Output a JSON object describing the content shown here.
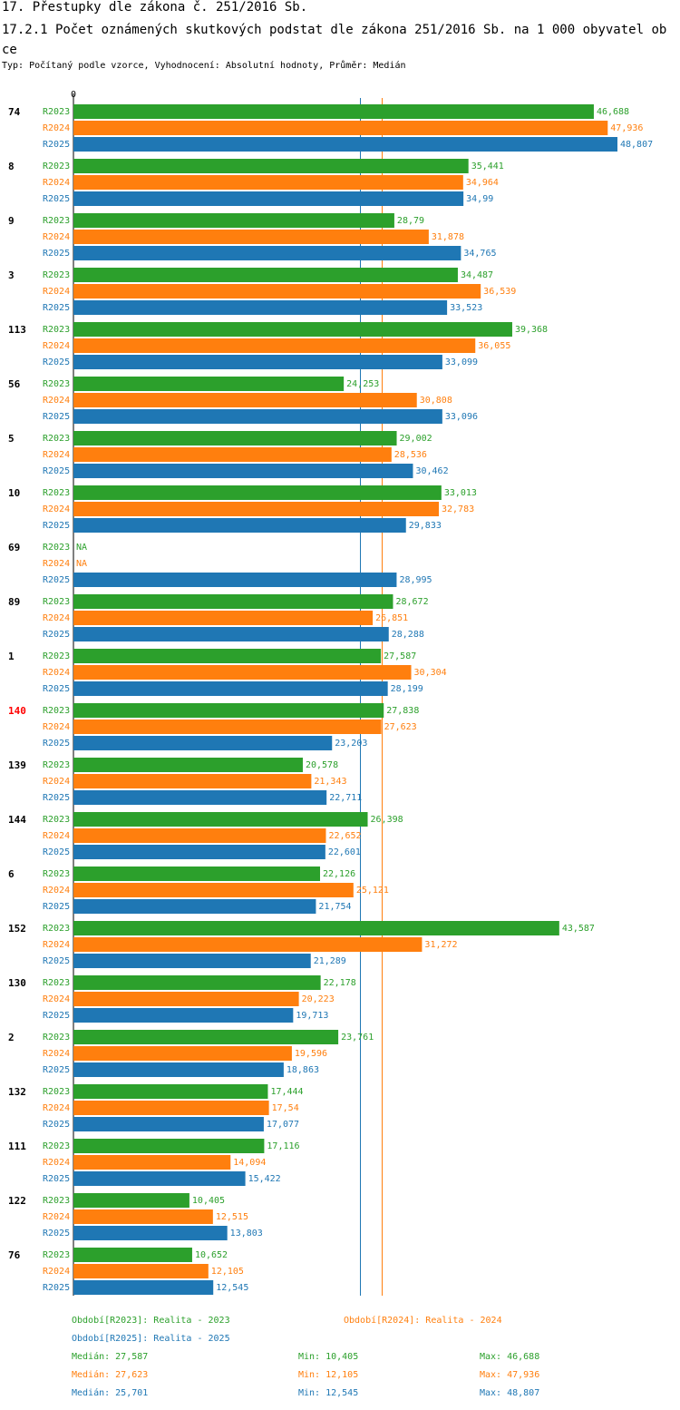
{
  "title": "17. Přestupky dle zákona č. 251/2016 Sb.",
  "subtitle": "17.2.1 Počet oznámených skutkových podstat dle zákona 251/2016 Sb. na 1 000 obyvatel obce",
  "type_line": "Typ: Počítaný podle vzorce, Vyhodnocení: Absolutní hodnoty, Průměr: Medián",
  "colors": {
    "R2023": "#2ca02c",
    "R2024": "#ff7f0e",
    "R2025": "#1f77b4",
    "highlight": "#ff0000",
    "label": "#000000"
  },
  "chart_data": {
    "type": "bar",
    "orientation": "horizontal",
    "axis_zero_label": "0",
    "xlim": [
      0,
      48.807
    ],
    "highlight_category": "140",
    "missing_label": "NA",
    "series_names": [
      "R2023",
      "R2024",
      "R2025"
    ],
    "categories": [
      "74",
      "8",
      "9",
      "3",
      "113",
      "56",
      "5",
      "10",
      "69",
      "89",
      "1",
      "140",
      "139",
      "144",
      "6",
      "152",
      "130",
      "2",
      "132",
      "111",
      "122",
      "76"
    ],
    "series": [
      {
        "name": "R2023",
        "values": [
          46.688,
          35.441,
          28.79,
          34.487,
          39.368,
          24.253,
          29.002,
          33.013,
          null,
          28.672,
          27.587,
          27.838,
          20.578,
          26.398,
          22.126,
          43.587,
          22.178,
          23.761,
          17.444,
          17.116,
          10.405,
          10.652
        ],
        "labels": [
          "46,688",
          "35,441",
          "28,79",
          "34,487",
          "39,368",
          "24,253",
          "29,002",
          "33,013",
          "NA",
          "28,672",
          "27,587",
          "27,838",
          "20,578",
          "26,398",
          "22,126",
          "43,587",
          "22,178",
          "23,761",
          "17,444",
          "17,116",
          "10,405",
          "10,652"
        ]
      },
      {
        "name": "R2024",
        "values": [
          47.936,
          34.964,
          31.878,
          36.539,
          36.055,
          30.808,
          28.536,
          32.783,
          null,
          26.851,
          30.304,
          27.623,
          21.343,
          22.652,
          25.121,
          31.272,
          20.223,
          19.596,
          17.54,
          14.094,
          12.515,
          12.105
        ],
        "labels": [
          "47,936",
          "34,964",
          "31,878",
          "36,539",
          "36,055",
          "30,808",
          "28,536",
          "32,783",
          "NA",
          "26,851",
          "30,304",
          "27,623",
          "21,343",
          "22,652",
          "25,121",
          "31,272",
          "20,223",
          "19,596",
          "17,54",
          "14,094",
          "12,515",
          "12,105"
        ]
      },
      {
        "name": "R2025",
        "values": [
          48.807,
          34.99,
          34.765,
          33.523,
          33.099,
          33.096,
          30.462,
          29.833,
          28.995,
          28.288,
          28.199,
          23.203,
          22.711,
          22.601,
          21.754,
          21.289,
          19.713,
          18.863,
          17.077,
          15.422,
          13.803,
          12.545
        ],
        "labels": [
          "48,807",
          "34,99",
          "34,765",
          "33,523",
          "33,099",
          "33,096",
          "30,462",
          "29,833",
          "28,995",
          "28,288",
          "28,199",
          "23,203",
          "22,711",
          "22,601",
          "21,754",
          "21,289",
          "19,713",
          "18,863",
          "17,077",
          "15,422",
          "13,803",
          "12,545"
        ]
      }
    ],
    "median_lines": [
      {
        "series": "R2024",
        "value": 27.623
      },
      {
        "series": "R2025",
        "value": 25.701
      }
    ]
  },
  "legend": {
    "periods": [
      {
        "series": "R2023",
        "text": "Období[R2023]: Realita - 2023"
      },
      {
        "series": "R2024",
        "text": "Období[R2024]: Realita - 2024"
      },
      {
        "series": "R2025",
        "text": "Období[R2025]: Realita - 2025"
      }
    ],
    "stats": [
      {
        "series": "R2023",
        "median": "Medián: 27,587",
        "min": "Min: 10,405",
        "max": "Max: 46,688"
      },
      {
        "series": "R2024",
        "median": "Medián: 27,623",
        "min": "Min: 12,105",
        "max": "Max: 47,936"
      },
      {
        "series": "R2025",
        "median": "Medián: 25,701",
        "min": "Min: 12,545",
        "max": "Max: 48,807"
      }
    ]
  }
}
